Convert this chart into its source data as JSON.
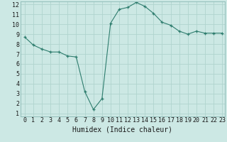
{
  "x": [
    0,
    1,
    2,
    3,
    4,
    5,
    6,
    7,
    8,
    9,
    10,
    11,
    12,
    13,
    14,
    15,
    16,
    17,
    18,
    19,
    20,
    21,
    22,
    23
  ],
  "y": [
    8.7,
    7.9,
    7.5,
    7.2,
    7.2,
    6.8,
    6.7,
    3.2,
    1.4,
    2.5,
    10.1,
    11.5,
    11.7,
    12.2,
    11.8,
    11.1,
    10.2,
    9.9,
    9.3,
    9.0,
    9.3,
    9.1,
    9.1,
    9.1
  ],
  "line_color": "#2e7d6e",
  "marker_color": "#2e7d6e",
  "bg_color": "#cce8e4",
  "grid_color": "#b0d4ce",
  "xlabel": "Humidex (Indice chaleur)",
  "xlabel_fontsize": 7,
  "tick_fontsize": 6,
  "ylim_min": 1,
  "ylim_max": 12,
  "xlim_min": 0,
  "xlim_max": 23,
  "yticks": [
    1,
    2,
    3,
    4,
    5,
    6,
    7,
    8,
    9,
    10,
    11,
    12
  ],
  "xticks": [
    0,
    1,
    2,
    3,
    4,
    5,
    6,
    7,
    8,
    9,
    10,
    11,
    12,
    13,
    14,
    15,
    16,
    17,
    18,
    19,
    20,
    21,
    22,
    23
  ]
}
